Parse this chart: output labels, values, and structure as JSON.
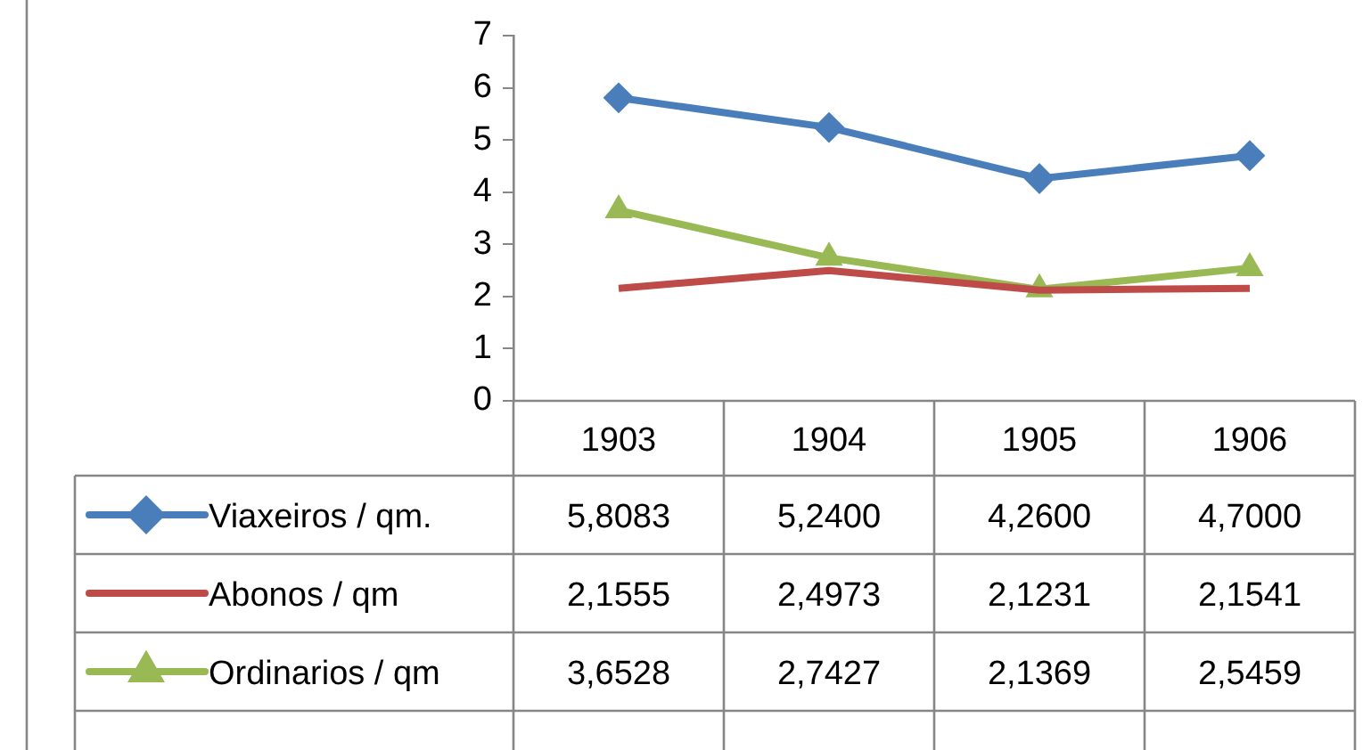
{
  "chart_data": {
    "type": "line",
    "categories": [
      "1903",
      "1904",
      "1905",
      "1906"
    ],
    "ylim": [
      0,
      7
    ],
    "yticks": [
      0,
      1,
      2,
      3,
      4,
      5,
      6,
      7
    ],
    "grid": false,
    "legend": "bottom",
    "line_style": "solid",
    "series": [
      {
        "name": "Viaxeiros / qm.",
        "color": "#4a7ebb",
        "marker": "diamond",
        "values": [
          5.8083,
          5.24,
          4.26,
          4.7
        ],
        "value_labels": [
          "5,8083",
          "5,2400",
          "4,2600",
          "4,7000"
        ]
      },
      {
        "name": "Abonos / qm",
        "color": "#be4b48",
        "marker": "none",
        "values": [
          2.1555,
          2.4973,
          2.1231,
          2.1541
        ],
        "value_labels": [
          "2,1555",
          "2,4973",
          "2,1231",
          "2,1541"
        ]
      },
      {
        "name": "Ordinarios / qm",
        "color": "#98b954",
        "marker": "triangle",
        "values": [
          3.6528,
          2.7427,
          2.1369,
          2.5459
        ],
        "value_labels": [
          "3,6528",
          "2,7427",
          "2,1369",
          "2,5459"
        ]
      }
    ]
  }
}
